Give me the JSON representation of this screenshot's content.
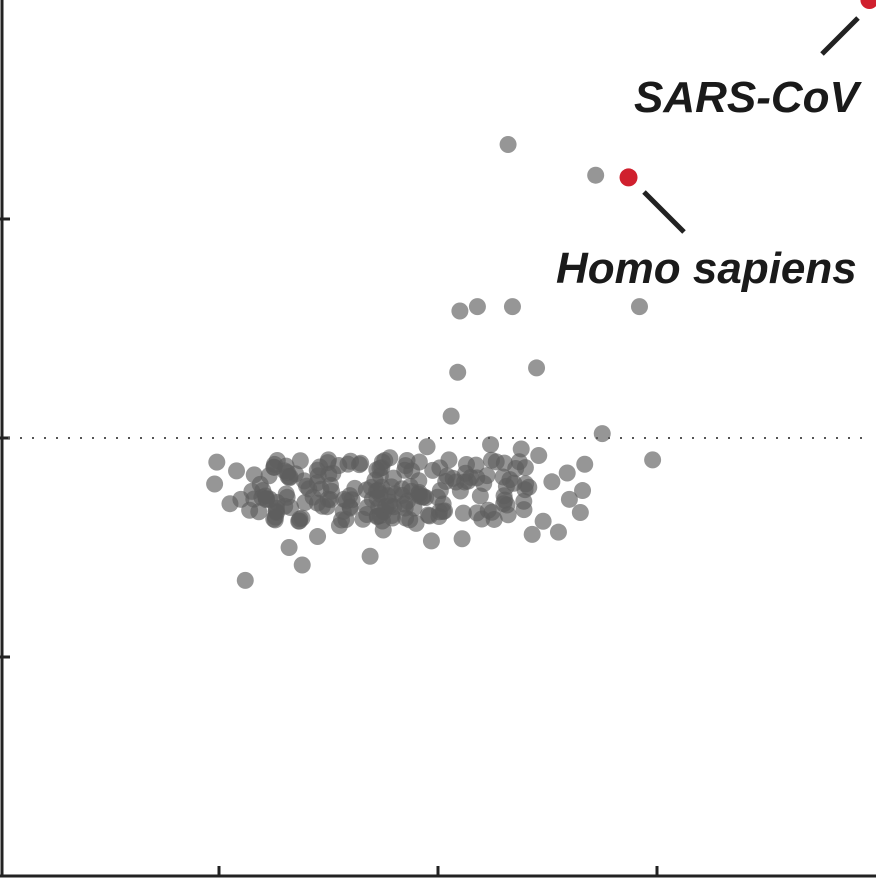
{
  "chart_data": {
    "type": "scatter",
    "title": "",
    "xlabel": "",
    "ylabel": "",
    "xlim": [
      0,
      4
    ],
    "ylim": [
      0,
      4
    ],
    "xticks": [
      1,
      2,
      3
    ],
    "yticks": [
      1,
      2,
      3
    ],
    "grid": false,
    "threshold_y": 2.0,
    "colors": {
      "background": "#5e5e5e",
      "highlight": "#d0202e",
      "axis": "#222222",
      "threshold": "#555555",
      "leader": "#222222"
    },
    "highlighted": [
      {
        "name": "SARS-CoV",
        "x": 3.97,
        "y": 4.0
      },
      {
        "name": "Homo sapiens",
        "x": 2.87,
        "y": 3.19
      }
    ],
    "points": [
      [
        2.32,
        3.34
      ],
      [
        2.72,
        3.2
      ],
      [
        2.1,
        2.58
      ],
      [
        2.18,
        2.6
      ],
      [
        2.34,
        2.6
      ],
      [
        2.92,
        2.6
      ],
      [
        2.09,
        2.3
      ],
      [
        2.45,
        2.32
      ],
      [
        2.06,
        2.1
      ],
      [
        2.75,
        2.02
      ],
      [
        2.98,
        1.9
      ],
      [
        0.99,
        1.89
      ],
      [
        0.98,
        1.79
      ],
      [
        1.12,
        1.35
      ],
      [
        1.38,
        1.42
      ],
      [
        1.69,
        1.46
      ],
      [
        1.32,
        1.5
      ],
      [
        1.97,
        1.53
      ],
      [
        2.11,
        1.54
      ],
      [
        2.43,
        1.56
      ],
      [
        2.55,
        1.57
      ],
      [
        2.65,
        1.66
      ],
      [
        2.66,
        1.76
      ],
      [
        2.67,
        1.88
      ],
      [
        2.59,
        1.84
      ],
      [
        1.08,
        1.85
      ],
      [
        1.1,
        1.72
      ],
      [
        1.14,
        1.67
      ],
      [
        1.3,
        1.85
      ],
      [
        1.5,
        1.9
      ],
      [
        1.78,
        1.91
      ],
      [
        1.95,
        1.96
      ],
      [
        2.24,
        1.97
      ],
      [
        2.38,
        1.95
      ],
      [
        2.46,
        1.92
      ],
      [
        1.6,
        1.68
      ],
      [
        1.9,
        1.61
      ],
      [
        2.2,
        1.63
      ],
      [
        2.48,
        1.62
      ],
      [
        1.45,
        1.55
      ],
      [
        1.75,
        1.58
      ],
      [
        2.3,
        1.7
      ],
      [
        1.05,
        1.7
      ],
      [
        1.62,
        1.77
      ],
      [
        1.88,
        1.85
      ],
      [
        2.05,
        1.9
      ],
      [
        2.15,
        1.82
      ],
      [
        1.25,
        1.63
      ],
      [
        1.4,
        1.78
      ],
      [
        1.55,
        1.6
      ],
      [
        1.7,
        1.72
      ],
      [
        2.52,
        1.8
      ],
      [
        2.6,
        1.72
      ],
      [
        1.2,
        1.76
      ],
      [
        1.85,
        1.68
      ]
    ],
    "cluster": {
      "x_range": [
        1.15,
        2.45
      ],
      "y_range": [
        1.62,
        1.9
      ],
      "count": 170
    }
  },
  "labels": {
    "sars": "SARS-CoV",
    "homo": "Homo sapiens"
  }
}
